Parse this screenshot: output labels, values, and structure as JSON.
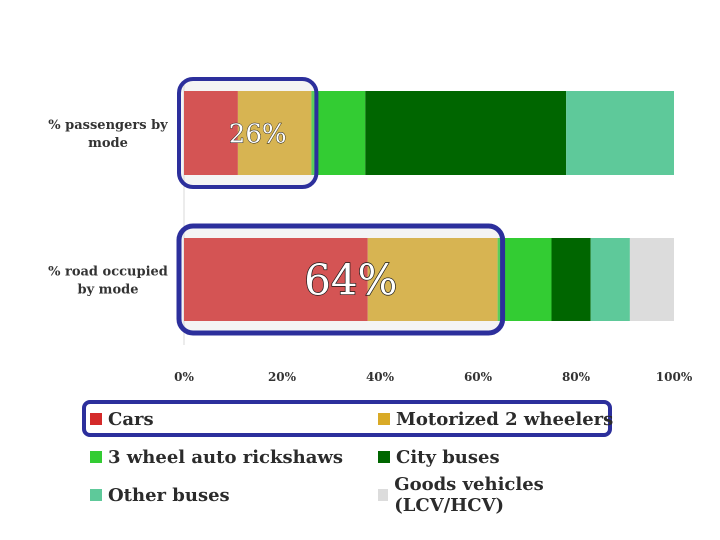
{
  "chart_data": {
    "type": "bar",
    "orientation": "horizontal",
    "stacked": true,
    "percent": true,
    "categories": [
      "% passengers by mode",
      "% road occupied by mode"
    ],
    "category_label_lines": [
      [
        "% passengers by",
        "mode"
      ],
      [
        "% road occupied",
        "by mode"
      ]
    ],
    "series": [
      {
        "name": "Cars",
        "color": "#d42a2a",
        "values": [
          11,
          37.5
        ]
      },
      {
        "name": "Motorized 2 wheelers",
        "color": "#d9aa27",
        "values": [
          15,
          26.5
        ]
      },
      {
        "name": "3 wheel auto rickshaws",
        "color": "#33cc33",
        "values": [
          11,
          11
        ]
      },
      {
        "name": "City buses",
        "color": "#006600",
        "values": [
          41,
          8
        ]
      },
      {
        "name": "Other buses",
        "color": "#5ec99a",
        "values": [
          22,
          8
        ]
      },
      {
        "name": "Goods vehicles (LCV/HCV)",
        "color": "#dcdcdc",
        "values": [
          0,
          9
        ]
      }
    ],
    "xlim": [
      0,
      100
    ],
    "xticks": [
      "0%",
      "20%",
      "40%",
      "60%",
      "80%",
      "100%"
    ],
    "grid": false,
    "legend_position": "bottom",
    "annotations": [
      {
        "text": "26%",
        "row": 0,
        "from": 0,
        "to": 26
      },
      {
        "text": "64%",
        "row": 1,
        "from": 0,
        "to": 64
      }
    ],
    "legend_highlight": [
      "Cars",
      "Motorized 2 wheelers"
    ]
  }
}
